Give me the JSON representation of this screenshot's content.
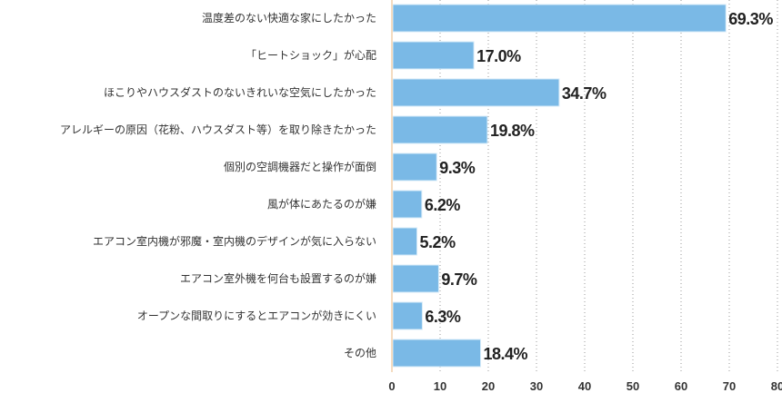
{
  "chart_data": {
    "type": "bar",
    "orientation": "horizontal",
    "categories": [
      "温度差のない快適な家にしたかった",
      "「ヒートショック」が心配",
      "ほこりやハウスダストのないきれいな空気にしたかった",
      "アレルギーの原因（花粉、ハウスダスト等）を取り除きたかった",
      "個別の空調機器だと操作が面倒",
      "風が体にあたるのが嫌",
      "エアコン室内機が邪魔・室内機のデザインが気に入らない",
      "エアコン室外機を何台も設置するのが嫌",
      "オープンな間取りにするとエアコンが効きにくい",
      "その他"
    ],
    "values": [
      69.3,
      17.0,
      34.7,
      19.8,
      9.3,
      6.2,
      5.2,
      9.7,
      6.3,
      18.4
    ],
    "data_labels": [
      "69.3%",
      "17.0%",
      "34.7%",
      "19.8%",
      "9.3%",
      "6.2%",
      "5.2%",
      "9.7%",
      "6.3%",
      "18.4%"
    ],
    "xlim": [
      0,
      80
    ],
    "xticks": [
      "0",
      "10",
      "20",
      "30",
      "40",
      "50",
      "60",
      "70",
      "80"
    ],
    "grid": "vertical dotted",
    "title": "",
    "xlabel": "",
    "ylabel": "",
    "colors": {
      "bar": "#7ab9e6",
      "bar_edge": "#d7ebf8",
      "axis": "#f5dcc0",
      "grid": "#9a9a9a"
    }
  }
}
